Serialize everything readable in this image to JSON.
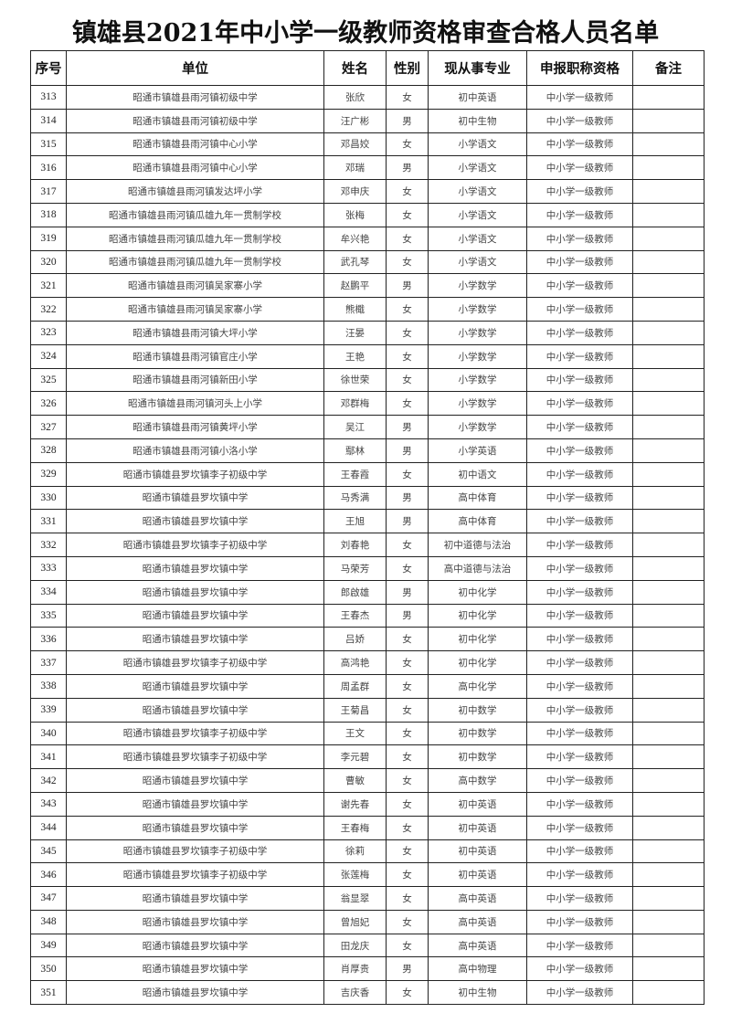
{
  "title": "镇雄县2021年中小学一级教师资格审查合格人员名单",
  "table": {
    "headers": [
      "序号",
      "单位",
      "姓名",
      "性别",
      "现从事专业",
      "申报职称资格",
      "备注"
    ],
    "rows": [
      [
        "313",
        "昭通市镇雄县雨河镇初级中学",
        "张欣",
        "女",
        "初中英语",
        "中小学一级教师",
        ""
      ],
      [
        "314",
        "昭通市镇雄县雨河镇初级中学",
        "汪广彬",
        "男",
        "初中生物",
        "中小学一级教师",
        ""
      ],
      [
        "315",
        "昭通市镇雄县雨河镇中心小学",
        "邓昌姣",
        "女",
        "小学语文",
        "中小学一级教师",
        ""
      ],
      [
        "316",
        "昭通市镇雄县雨河镇中心小学",
        "邓瑞",
        "男",
        "小学语文",
        "中小学一级教师",
        ""
      ],
      [
        "317",
        "昭通市镇雄县雨河镇发达坪小学",
        "邓申庆",
        "女",
        "小学语文",
        "中小学一级教师",
        ""
      ],
      [
        "318",
        "昭通市镇雄县雨河镇瓜雄九年一贯制学校",
        "张梅",
        "女",
        "小学语文",
        "中小学一级教师",
        ""
      ],
      [
        "319",
        "昭通市镇雄县雨河镇瓜雄九年一贯制学校",
        "牟兴艳",
        "女",
        "小学语文",
        "中小学一级教师",
        ""
      ],
      [
        "320",
        "昭通市镇雄县雨河镇瓜雄九年一贯制学校",
        "武孔琴",
        "女",
        "小学语文",
        "中小学一级教师",
        ""
      ],
      [
        "321",
        "昭通市镇雄县雨河镇吴家寨小学",
        "赵鹏平",
        "男",
        "小学数学",
        "中小学一级教师",
        ""
      ],
      [
        "322",
        "昭通市镇雄县雨河镇吴家寨小学",
        "熊檝",
        "女",
        "小学数学",
        "中小学一级教师",
        ""
      ],
      [
        "323",
        "昭通市镇雄县雨河镇大坪小学",
        "汪晏",
        "女",
        "小学数学",
        "中小学一级教师",
        ""
      ],
      [
        "324",
        "昭通市镇雄县雨河镇官庄小学",
        "王艳",
        "女",
        "小学数学",
        "中小学一级教师",
        ""
      ],
      [
        "325",
        "昭通市镇雄县雨河镇新田小学",
        "徐世荣",
        "女",
        "小学数学",
        "中小学一级教师",
        ""
      ],
      [
        "326",
        "昭通市镇雄县雨河镇河头上小学",
        "邓群梅",
        "女",
        "小学数学",
        "中小学一级教师",
        ""
      ],
      [
        "327",
        "昭通市镇雄县雨河镇黄坪小学",
        "吴江",
        "男",
        "小学数学",
        "中小学一级教师",
        ""
      ],
      [
        "328",
        "昭通市镇雄县雨河镇小洛小学",
        "鄢林",
        "男",
        "小学英语",
        "中小学一级教师",
        ""
      ],
      [
        "329",
        "昭通市镇雄县罗坎镇李子初级中学",
        "王春霞",
        "女",
        "初中语文",
        "中小学一级教师",
        ""
      ],
      [
        "330",
        "昭通市镇雄县罗坎镇中学",
        "马秀满",
        "男",
        "高中体育",
        "中小学一级教师",
        ""
      ],
      [
        "331",
        "昭通市镇雄县罗坎镇中学",
        "王旭",
        "男",
        "高中体育",
        "中小学一级教师",
        ""
      ],
      [
        "332",
        "昭通市镇雄县罗坎镇李子初级中学",
        "刘春艳",
        "女",
        "初中道德与法治",
        "中小学一级教师",
        ""
      ],
      [
        "333",
        "昭通市镇雄县罗坎镇中学",
        "马荣芳",
        "女",
        "高中道德与法治",
        "中小学一级教师",
        ""
      ],
      [
        "334",
        "昭通市镇雄县罗坎镇中学",
        "郎啟雄",
        "男",
        "初中化学",
        "中小学一级教师",
        ""
      ],
      [
        "335",
        "昭通市镇雄县罗坎镇中学",
        "王春杰",
        "男",
        "初中化学",
        "中小学一级教师",
        ""
      ],
      [
        "336",
        "昭通市镇雄县罗坎镇中学",
        "吕娇",
        "女",
        "初中化学",
        "中小学一级教师",
        ""
      ],
      [
        "337",
        "昭通市镇雄县罗坎镇李子初级中学",
        "高鸿艳",
        "女",
        "初中化学",
        "中小学一级教师",
        ""
      ],
      [
        "338",
        "昭通市镇雄县罗坎镇中学",
        "周孟群",
        "女",
        "高中化学",
        "中小学一级教师",
        ""
      ],
      [
        "339",
        "昭通市镇雄县罗坎镇中学",
        "王菊昌",
        "女",
        "初中数学",
        "中小学一级教师",
        ""
      ],
      [
        "340",
        "昭通市镇雄县罗坎镇李子初级中学",
        "王文",
        "女",
        "初中数学",
        "中小学一级教师",
        ""
      ],
      [
        "341",
        "昭通市镇雄县罗坎镇李子初级中学",
        "李元碧",
        "女",
        "初中数学",
        "中小学一级教师",
        ""
      ],
      [
        "342",
        "昭通市镇雄县罗坎镇中学",
        "曹敏",
        "女",
        "高中数学",
        "中小学一级教师",
        ""
      ],
      [
        "343",
        "昭通市镇雄县罗坎镇中学",
        "谢先春",
        "女",
        "初中英语",
        "中小学一级教师",
        ""
      ],
      [
        "344",
        "昭通市镇雄县罗坎镇中学",
        "王春梅",
        "女",
        "初中英语",
        "中小学一级教师",
        ""
      ],
      [
        "345",
        "昭通市镇雄县罗坎镇李子初级中学",
        "徐莉",
        "女",
        "初中英语",
        "中小学一级教师",
        ""
      ],
      [
        "346",
        "昭通市镇雄县罗坎镇李子初级中学",
        "张莲梅",
        "女",
        "初中英语",
        "中小学一级教师",
        ""
      ],
      [
        "347",
        "昭通市镇雄县罗坎镇中学",
        "翁显翠",
        "女",
        "高中英语",
        "中小学一级教师",
        ""
      ],
      [
        "348",
        "昭通市镇雄县罗坎镇中学",
        "曾旭妃",
        "女",
        "高中英语",
        "中小学一级教师",
        ""
      ],
      [
        "349",
        "昭通市镇雄县罗坎镇中学",
        "田龙庆",
        "女",
        "高中英语",
        "中小学一级教师",
        ""
      ],
      [
        "350",
        "昭通市镇雄县罗坎镇中学",
        "肖厚贵",
        "男",
        "高中物理",
        "中小学一级教师",
        ""
      ],
      [
        "351",
        "昭通市镇雄县罗坎镇中学",
        "吉庆香",
        "女",
        "初中生物",
        "中小学一级教师",
        ""
      ]
    ]
  }
}
